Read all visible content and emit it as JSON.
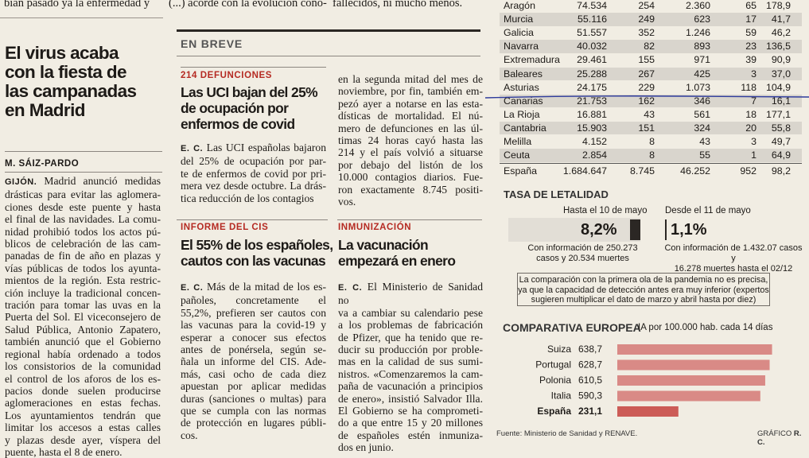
{
  "top_lines": {
    "col1": "bían pasado ya la enfermedad y",
    "col2": "(...) acorde con la evolución cono-",
    "col3": "fallecidos, ni mucho menos."
  },
  "article_main": {
    "headline": [
      "El virus acaba",
      "con la fiesta de",
      "las campanadas",
      "en Madrid"
    ],
    "byline": "M. SÁIZ-PARDO",
    "lead": "GIJÓN.",
    "lines": [
      "Madrid anunció medidas",
      "drásticas para evitar las aglomera-",
      "ciones desde este puente y hasta",
      "el final de las navidades. La comu-",
      "nidad prohibió todos los actos pú-",
      "blicos de celebración de las cam-",
      "panadas de fin de año en plazas y",
      "vías públicas de todos los ayunta-",
      "mientos de la región. Esta restric-",
      "ción incluye la tradicional concen-",
      "tración para tomar las uvas en la",
      "Puerta del Sol. El viceconsejero de",
      "Salud Pública, Antonio Zapatero,",
      "también anunció que el Gobierno",
      "regional había ordenado a todos",
      "los consistorios de la comunidad",
      "el control de los aforos de los es-",
      "pacios donde suelen producirse",
      "aglomeraciones en estas fechas.",
      "Los ayuntamientos tendrán que",
      "limitar los accesos a estas calles",
      "y plazas desde ayer, víspera del",
      "puente, hasta el 8 de enero."
    ]
  },
  "en_breve": {
    "label": "EN BREVE",
    "item1": {
      "kicker": "214 DEFUNCIONES",
      "headline": [
        "Las UCI bajan del 25%",
        "de ocupación por",
        "enfermos de covid"
      ],
      "lead": "E. C.",
      "lines_left": [
        "Las UCI españolas bajaron",
        "del 25% de ocupación por par-",
        "te de enfermos de covid por pri-",
        "mera vez desde octubre. La drás-",
        "tica reducción de los contagios"
      ],
      "lines_right": [
        "en la segunda mitad del mes de",
        "noviembre, por fin, también em-",
        "pezó ayer a notarse en las esta-",
        "dísticas de mortalidad. El nú-",
        "mero de defunciones en las úl-",
        "timas 24 horas cayó hasta las",
        "214 y el país volvió a situarse",
        "por debajo del listón de los",
        "10.000 contagios diarios. Fue-",
        "ron exactamente 8.745 positi-",
        "vos."
      ]
    },
    "item2": {
      "kicker": "INFORME DEL CIS",
      "headline": [
        "El 55% de los españoles,",
        "cautos con las vacunas"
      ],
      "lead": "E. C.",
      "lines": [
        "Más de la mitad de los es-",
        "pañoles, concretamente el",
        "55,2%, prefieren ser cautos con",
        "las vacunas para la covid-19 y",
        "esperar a conocer sus efectos",
        "antes de ponérsela, según se-",
        "ñala un informe del CIS. Ade-",
        "más, casi ocho de cada diez",
        "apuestan por aplicar medidas",
        "duras (sanciones o multas) para",
        "que se cumpla con las normas",
        "de protección en lugares públi-",
        "cos."
      ]
    },
    "item3": {
      "kicker": "INMUNIZACIÓN",
      "headline": [
        "La vacunación",
        "empezará en enero"
      ],
      "lead": "E. C.",
      "lines": [
        "El Ministerio de Sanidad no",
        "va a cambiar su calendario pese",
        "a los problemas de fabricación",
        "de Pfizer, que ha tenido que re-",
        "ducir su producción por proble-",
        "mas en la calidad de sus sumi-",
        "nistros. «Comenzaremos la cam-",
        "paña de vacunación a principios",
        "de enero», insistió Salvador Illa.",
        "El Gobierno se ha comprometi-",
        "do a que entre 15 y 20 millones",
        "de españoles estén inmuniza-",
        "dos en junio."
      ]
    }
  },
  "regions_table": {
    "rows": [
      {
        "name": "Aragón",
        "v1": "74.534",
        "v2": "254",
        "v3": "2.360",
        "v4": "65",
        "v5": "178,9"
      },
      {
        "name": "Murcia",
        "v1": "55.116",
        "v2": "249",
        "v3": "623",
        "v4": "17",
        "v5": "41,7"
      },
      {
        "name": "Galicia",
        "v1": "51.557",
        "v2": "352",
        "v3": "1.246",
        "v4": "59",
        "v5": "46,2"
      },
      {
        "name": "Navarra",
        "v1": "40.032",
        "v2": "82",
        "v3": "893",
        "v4": "23",
        "v5": "136,5"
      },
      {
        "name": "Extremadura",
        "v1": "29.461",
        "v2": "155",
        "v3": "971",
        "v4": "39",
        "v5": "90,9"
      },
      {
        "name": "Baleares",
        "v1": "25.288",
        "v2": "267",
        "v3": "425",
        "v4": "3",
        "v5": "37,0"
      },
      {
        "name": "Asturias",
        "v1": "24.175",
        "v2": "229",
        "v3": "1.073",
        "v4": "118",
        "v5": "104,9"
      },
      {
        "name": "Canarias",
        "v1": "21.753",
        "v2": "162",
        "v3": "346",
        "v4": "7",
        "v5": "16,1"
      },
      {
        "name": "La Rioja",
        "v1": "16.881",
        "v2": "43",
        "v3": "561",
        "v4": "18",
        "v5": "177,1"
      },
      {
        "name": "Cantabria",
        "v1": "15.903",
        "v2": "151",
        "v3": "324",
        "v4": "20",
        "v5": "55,8"
      },
      {
        "name": "Melilla",
        "v1": "4.152",
        "v2": "8",
        "v3": "43",
        "v4": "3",
        "v5": "49,7"
      },
      {
        "name": "Ceuta",
        "v1": "2.854",
        "v2": "8",
        "v3": "55",
        "v4": "1",
        "v5": "64,9"
      }
    ],
    "total": {
      "name": "España",
      "v1": "1.684.647",
      "v2": "8.745",
      "v3": "46.252",
      "v4": "952",
      "v5": "98,2"
    }
  },
  "lethality": {
    "title": "TASA DE LETALIDAD",
    "left_label": "Hasta el 10 de mayo",
    "left_value": "8,2%",
    "left_note": [
      "Con información de 250.273",
      "casos y 20.534 muertes"
    ],
    "right_label": "Desde el 11 de mayo",
    "right_value": "1,1%",
    "right_note": [
      "Con información de 1.432.07 casos y",
      "16.278 muertes hasta el 02/12"
    ],
    "disclaimer": [
      "La comparación con la primera ola de la pandemia no es precisa,",
      "ya que la capacidad de detección antes era muy inferior (expertos",
      "sugieren multiplicar el dato de marzo y abril hasta por diez)"
    ]
  },
  "chart_data": {
    "type": "bar",
    "title": "COMPARATIVA EUROPEA",
    "subtitle": "IA por 100.000 hab. cada 14 días",
    "categories": [
      "Suiza",
      "Portugal",
      "Polonia",
      "Italia",
      "España"
    ],
    "values": [
      638.7,
      628.7,
      610.5,
      590.3,
      231.1
    ],
    "value_labels": [
      "638,7",
      "628,7",
      "610,5",
      "590,3",
      "231,1"
    ],
    "highlight": "España",
    "colors": {
      "bar": "#d98a86",
      "highlight": "#cc5c57"
    }
  },
  "footer": {
    "source": "Fuente: Ministerio de Sanidad y RENAVE.",
    "credit_prefix": "GRÁFICO",
    "credit_name": "R. C."
  }
}
